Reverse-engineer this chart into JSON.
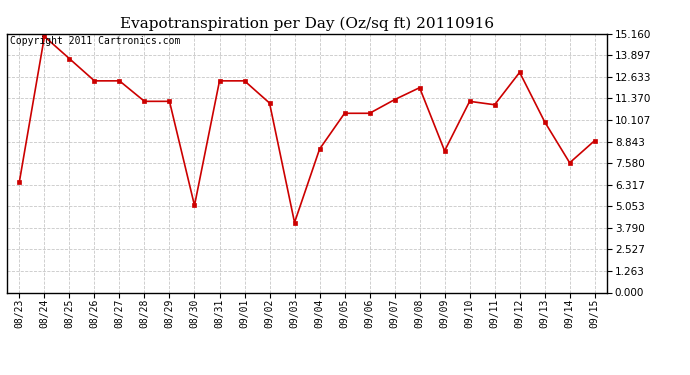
{
  "title": "Evapotranspiration per Day (Oz/sq ft) 20110916",
  "copyright": "Copyright 2011 Cartronics.com",
  "x_labels": [
    "08/23",
    "08/24",
    "08/25",
    "08/26",
    "08/27",
    "08/28",
    "08/29",
    "08/30",
    "08/31",
    "09/01",
    "09/02",
    "09/03",
    "09/04",
    "09/05",
    "09/06",
    "09/07",
    "09/08",
    "09/09",
    "09/10",
    "09/11",
    "09/12",
    "09/13",
    "09/14",
    "09/15"
  ],
  "y_values": [
    6.5,
    15.0,
    13.7,
    12.4,
    12.4,
    11.2,
    11.2,
    5.1,
    12.4,
    12.4,
    11.1,
    4.1,
    8.4,
    10.5,
    10.5,
    11.3,
    12.0,
    8.3,
    11.2,
    11.0,
    12.9,
    10.0,
    7.6,
    8.9
  ],
  "y_ticks": [
    0.0,
    1.263,
    2.527,
    3.79,
    5.053,
    6.317,
    7.58,
    8.843,
    10.107,
    11.37,
    12.633,
    13.897,
    15.16
  ],
  "line_color": "#cc0000",
  "marker_color": "#cc0000",
  "bg_color": "#ffffff",
  "grid_color": "#c8c8c8",
  "title_fontsize": 11,
  "copyright_fontsize": 7,
  "y_min": 0.0,
  "y_max": 15.16
}
